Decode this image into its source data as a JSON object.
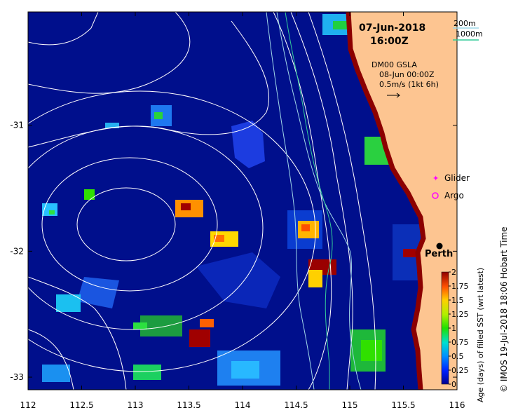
{
  "header": {
    "date": "07-Jun-2018",
    "time": "16:00Z"
  },
  "depth_legend": {
    "contour_200": "200m",
    "contour_1000": "1000m",
    "color_200": "#9fd8e8",
    "color_1000": "#33cc99"
  },
  "current_info": {
    "product": "DM00 GSLA",
    "valid": "08-Jun 00:00Z",
    "scale": "0.5m/s (1kt 6h)"
  },
  "platform_legend": {
    "glider": "Glider",
    "argo": "Argo",
    "glider_color": "#ff00ff",
    "argo_color": "#ff00ff"
  },
  "place": {
    "city": "Perth",
    "lon": 115.86,
    "lat": -31.95
  },
  "axes": {
    "lon_ticks": [
      "112",
      "112.5",
      "113",
      "113.5",
      "114",
      "114.5",
      "115",
      "115.5",
      "116"
    ],
    "lat_ticks": [
      "-31",
      "-32",
      "-33"
    ],
    "lon_range": [
      112,
      116
    ],
    "lat_range": [
      -33.1,
      -30.1
    ]
  },
  "colorbar": {
    "ticks": [
      "2",
      "1.75",
      "1.5",
      "1.25",
      "1",
      "0.75",
      "0.5",
      "0.25",
      "0"
    ],
    "label": "Age (days) of filled SST (wrt latest)"
  },
  "credit": "© IMOS 19-Jul-2018 18:06 Hobart Time",
  "colors": {
    "ocean": "#000f8c",
    "land": "#fdc591",
    "contour": "#ffffff"
  }
}
